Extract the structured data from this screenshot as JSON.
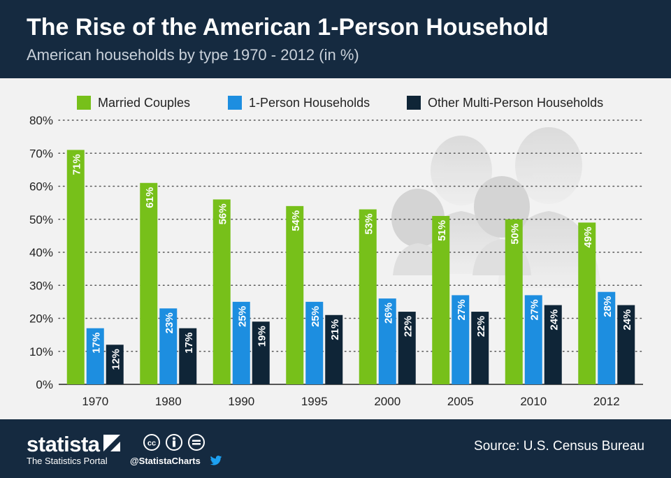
{
  "header": {
    "title": "The Rise of the American 1-Person Household",
    "subtitle": "American households by type 1970 - 2012 (in %)"
  },
  "chart_data": {
    "type": "bar",
    "categories": [
      "1970",
      "1980",
      "1990",
      "1995",
      "2000",
      "2005",
      "2010",
      "2012"
    ],
    "series": [
      {
        "name": "Married Couples",
        "color": "#77c01a",
        "values": [
          71,
          61,
          56,
          54,
          53,
          51,
          50,
          49
        ],
        "labels": [
          "71%",
          "61%",
          "56%",
          "54%",
          "53%",
          "51%",
          "50%",
          "49%"
        ]
      },
      {
        "name": "1-Person Households",
        "color": "#1d8ee0",
        "values": [
          17,
          23,
          25,
          25,
          26,
          27,
          27,
          28
        ],
        "labels": [
          "17%",
          "23%",
          "25%",
          "25%",
          "26%",
          "27%",
          "27%",
          "28%"
        ]
      },
      {
        "name": "Other Multi-Person Households",
        "color": "#0f2537",
        "values": [
          12,
          17,
          19,
          21,
          22,
          22,
          24,
          24
        ],
        "labels": [
          "12%",
          "17%",
          "19%",
          "21%",
          "22%",
          "22%",
          "24%",
          "24%"
        ]
      }
    ],
    "ylim": [
      0,
      80
    ],
    "yticks": [
      "0%",
      "10%",
      "20%",
      "30%",
      "40%",
      "50%",
      "60%",
      "70%",
      "80%"
    ],
    "legend_position": "top",
    "grid": true
  },
  "footer": {
    "brand": "statista",
    "portal": "The Statistics Portal",
    "handle": "@StatistaCharts",
    "source": "Source: U.S. Census Bureau"
  },
  "icons": [
    "statista-logo-icon",
    "creative-commons-icon",
    "attribution-icon",
    "no-derivatives-icon",
    "twitter-icon",
    "people-group-icon"
  ]
}
